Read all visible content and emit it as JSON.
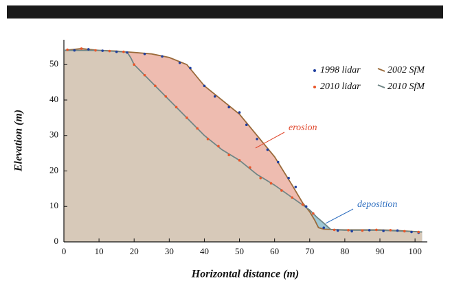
{
  "chart_data": {
    "type": "line",
    "xlabel": "Horizontal distance (m)",
    "ylabel": "Elevation (m)",
    "xlim": [
      0,
      103.5
    ],
    "xticks": [
      0,
      10,
      20,
      30,
      40,
      50,
      60,
      70,
      80,
      90,
      100
    ],
    "ylim": [
      0,
      57
    ],
    "yticks": [
      0,
      10,
      20,
      30,
      40,
      50
    ],
    "legend": "top-right",
    "series": [
      {
        "name": "1998 lidar",
        "type": "scatter",
        "color": "#1f3f9f",
        "x": [
          3,
          7,
          11,
          15,
          18,
          23,
          28,
          33,
          36,
          40,
          43,
          47,
          50,
          52,
          55,
          58,
          61,
          64,
          66,
          69,
          74,
          78,
          82,
          87,
          91,
          95,
          99,
          101
        ],
        "values": [
          54,
          54.3,
          53.9,
          53.6,
          53.4,
          53,
          52.3,
          50.5,
          49,
          44,
          41,
          38,
          36.5,
          33,
          29,
          26,
          22.5,
          18,
          15.5,
          10,
          4,
          3.2,
          3,
          3.3,
          3.1,
          3.2,
          2.8,
          2.6
        ]
      },
      {
        "name": "2010 lidar",
        "type": "scatter",
        "color": "#e8562a",
        "x": [
          1,
          5,
          9,
          13,
          17,
          20,
          23,
          26,
          29,
          32,
          35,
          38,
          41,
          44,
          47,
          50,
          53,
          56,
          59,
          62,
          65,
          68,
          71,
          77,
          81,
          85,
          89,
          93,
          97,
          101
        ],
        "values": [
          54.2,
          54.5,
          54,
          53.8,
          53.6,
          50,
          47,
          44,
          41,
          38,
          35,
          32,
          29,
          27,
          24.5,
          23,
          21,
          18,
          16.5,
          14.5,
          12.5,
          10.5,
          8,
          3.4,
          3.3,
          3.2,
          3.4,
          3.3,
          3,
          2.8
        ]
      },
      {
        "name": "2002 SfM",
        "type": "line",
        "color": "#9a6a3a",
        "x": [
          0,
          5,
          10,
          15,
          19,
          25,
          30,
          35,
          40,
          45,
          50,
          55,
          60,
          65,
          68,
          70,
          71.5,
          72.5,
          74,
          76,
          80,
          90,
          95,
          102
        ],
        "values": [
          54,
          54.5,
          54,
          53.8,
          53.5,
          53,
          52,
          50,
          44,
          40,
          36,
          30,
          24,
          16,
          11,
          8.5,
          6,
          4,
          3.6,
          3.5,
          3.4,
          3.4,
          3.2,
          2.8
        ]
      },
      {
        "name": "2010 SfM",
        "type": "line",
        "color": "#6f8585",
        "x": [
          0,
          10,
          18,
          19,
          20,
          25,
          30,
          35,
          40,
          45,
          50,
          55,
          60,
          65,
          70,
          72,
          74,
          76,
          80,
          90,
          102
        ],
        "values": [
          54,
          54,
          53.5,
          52,
          50,
          45,
          40,
          35,
          30,
          26,
          23,
          19,
          16,
          12.5,
          9,
          7,
          5.3,
          3.5,
          3.3,
          3.3,
          2.8
        ]
      }
    ],
    "annotations": [
      {
        "text": "erosion",
        "color": "#e0452a"
      },
      {
        "text": "deposition",
        "color": "#2f6fc0"
      }
    ]
  }
}
